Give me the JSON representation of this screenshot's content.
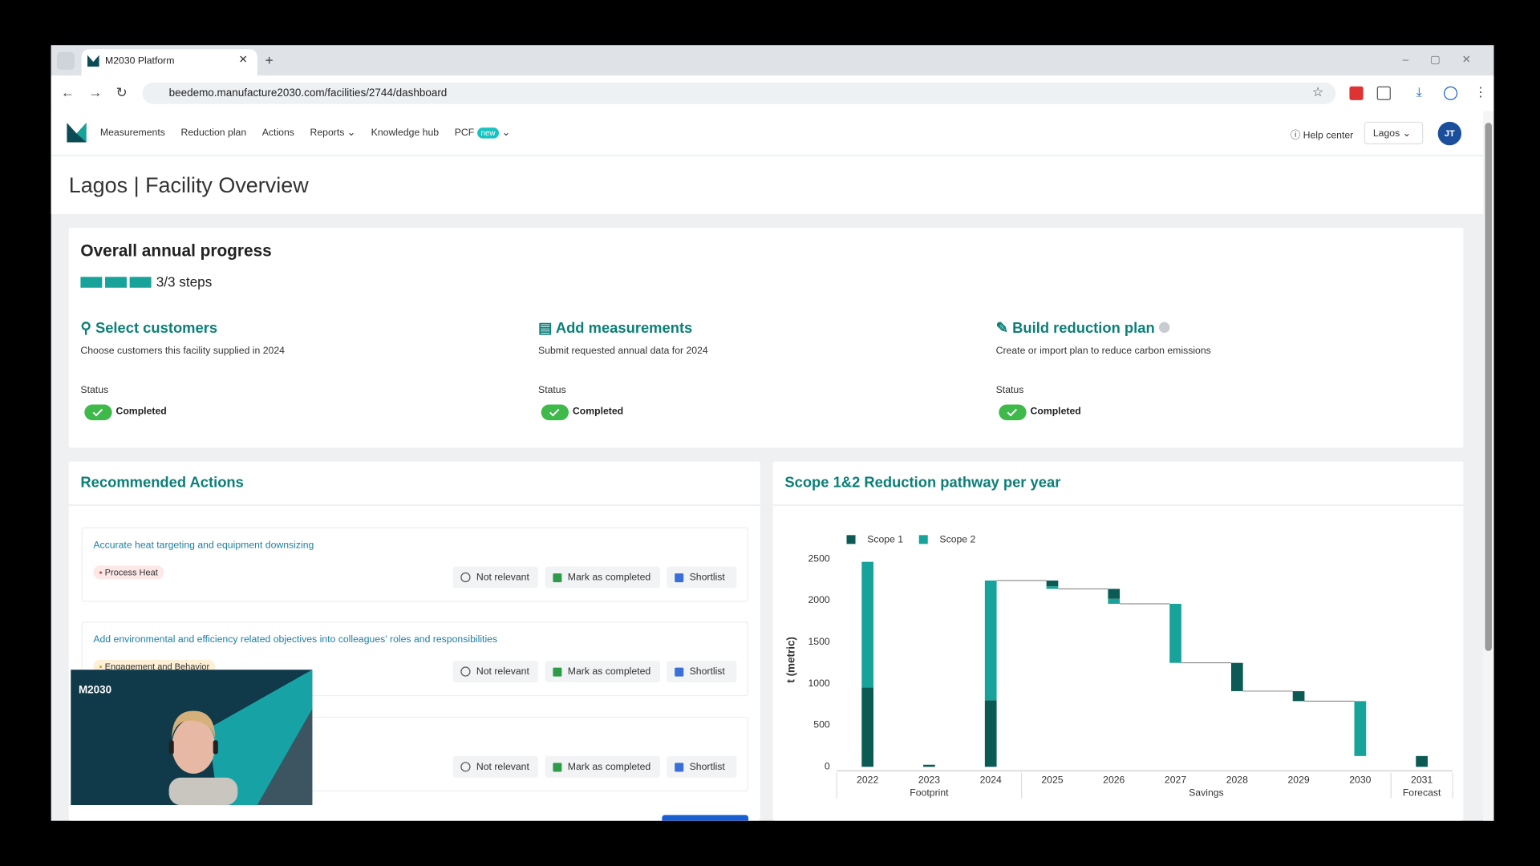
{
  "browser": {
    "tab_title": "M2030 Platform",
    "url": "beedemo.manufacture2030.com/facilities/2744/dashboard"
  },
  "nav": {
    "items": [
      "Measurements",
      "Reduction plan",
      "Actions",
      "Reports",
      "Knowledge hub",
      "PCF"
    ],
    "badge": "new",
    "help": "Help center",
    "facility": "Lagos",
    "avatar": "JT"
  },
  "page_title": "Lagos | Facility Overview",
  "progress": {
    "title": "Overall annual progress",
    "steps_label": "3/3 steps",
    "steps_done": 3,
    "steps_total": 3,
    "steps": [
      {
        "title": "Select customers",
        "description": "Choose customers this facility supplied in 2024",
        "status_label": "Status",
        "status": "Completed"
      },
      {
        "title": "Add measurements",
        "description": "Submit requested annual data for 2024",
        "status_label": "Status",
        "status": "Completed"
      },
      {
        "title": "Build reduction plan",
        "description": "Create or import plan to reduce carbon emissions",
        "status_label": "Status",
        "status": "Completed"
      }
    ]
  },
  "actions": {
    "title": "Recommended Actions",
    "buttons": [
      "Not relevant",
      "Mark as completed",
      "Shortlist"
    ],
    "items": [
      {
        "title": "Accurate heat targeting and equipment downsizing",
        "tag": "Process Heat"
      },
      {
        "title": "Add environmental and efficiency related objectives into colleagues' roles and responsibilities",
        "tag": "Engagement and Behavior"
      }
    ]
  },
  "video": {
    "logo": "M2030"
  },
  "chart_data": {
    "type": "waterfall",
    "title": "Scope 1&2 Reduction pathway per year",
    "y_label": "t (metric)",
    "categories": [
      "2022",
      "2023",
      "2024",
      "2025",
      "2026",
      "2027",
      "2028",
      "2029",
      "2030",
      "2031"
    ],
    "groups": [
      {
        "label": "Footprint",
        "span": 3
      },
      {
        "label": "Savings",
        "span": 6
      },
      {
        "label": "Forecast",
        "span": 1
      }
    ],
    "series": [
      {
        "name": "Scope 1",
        "color": "#0b5a53",
        "values": [
          955,
          25,
          800,
          -70,
          -120,
          0,
          -340,
          -120,
          0,
          130
        ]
      },
      {
        "name": "Scope 2",
        "color": "#17a399",
        "values": [
          1510,
          0,
          1440,
          -30,
          -60,
          -710,
          0,
          0,
          -660,
          0
        ]
      }
    ],
    "ylim": [
      0,
      2550
    ],
    "yticks": [
      0,
      500,
      1000,
      1500,
      2000,
      2500
    ],
    "legend": "top-left"
  }
}
